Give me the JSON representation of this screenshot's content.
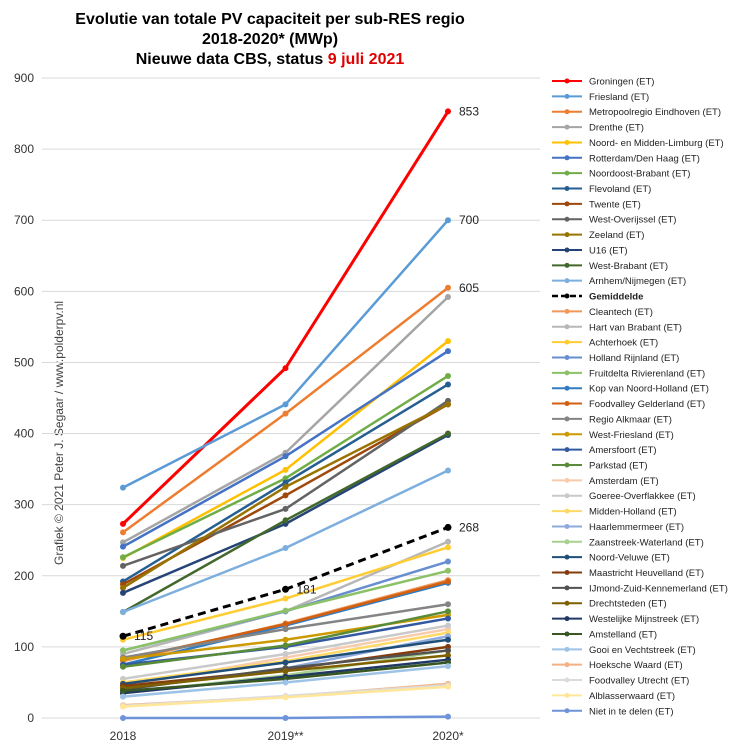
{
  "title": {
    "line1": "Evolutie  van totale PV capaciteit  per sub-RES regio",
    "line2": "2018-2020*  (MWp)",
    "line3_prefix": "Nieuwe data CBS, status ",
    "line3_highlight": "9 juli  2021",
    "highlight_color": "#e00000"
  },
  "credit": "Grafiek  ©  2021  Peter J.  Segaar  /  www.polderpv.nl",
  "chart_data": {
    "type": "line",
    "categories": [
      "2018",
      "2019**",
      "2020*"
    ],
    "ylim": [
      0,
      900
    ],
    "yticks": [
      0,
      100,
      200,
      300,
      400,
      500,
      600,
      700,
      800,
      900
    ],
    "grid": true,
    "legend_position": "right",
    "data_labels": [
      {
        "series": "Groningen (ET)",
        "index": 2,
        "text": "853"
      },
      {
        "series": "Friesland (ET)",
        "index": 2,
        "text": "700"
      },
      {
        "series": "Metropoolregio Eindhoven (ET)",
        "index": 2,
        "text": "605"
      },
      {
        "series": "Gemiddelde",
        "index": 0,
        "text": "115"
      },
      {
        "series": "Gemiddelde",
        "index": 1,
        "text": "181"
      },
      {
        "series": "Gemiddelde",
        "index": 2,
        "text": "268"
      }
    ],
    "series": [
      {
        "name": "Groningen (ET)",
        "values": [
          273,
          492,
          853
        ],
        "color": "#ff0000",
        "width": 3
      },
      {
        "name": "Friesland (ET)",
        "values": [
          324,
          441,
          700
        ],
        "color": "#5b9bd5",
        "width": 2.5
      },
      {
        "name": "Metropoolregio Eindhoven (ET)",
        "values": [
          261,
          428,
          605
        ],
        "color": "#ed7d31",
        "width": 2.5
      },
      {
        "name": "Drenthe (ET)",
        "values": [
          247,
          373,
          592
        ],
        "color": "#a5a5a5",
        "width": 2.5
      },
      {
        "name": "Noord- en Midden-Limburg (ET)",
        "values": [
          225,
          349,
          530
        ],
        "color": "#ffc000",
        "width": 2.5
      },
      {
        "name": "Rotterdam/Den Haag (ET)",
        "values": [
          241,
          368,
          516
        ],
        "color": "#4472c4",
        "width": 2.5
      },
      {
        "name": "Noordoost-Brabant (ET)",
        "values": [
          226,
          337,
          481
        ],
        "color": "#70ad47",
        "width": 2.5
      },
      {
        "name": "Flevoland (ET)",
        "values": [
          192,
          331,
          469
        ],
        "color": "#255e91",
        "width": 2.5
      },
      {
        "name": "Twente (ET)",
        "values": [
          188,
          313,
          441
        ],
        "color": "#9e480e",
        "width": 2.5
      },
      {
        "name": "West-Overijssel (ET)",
        "values": [
          214,
          294,
          446
        ],
        "color": "#636363",
        "width": 2.5
      },
      {
        "name": "Zeeland (ET)",
        "values": [
          183,
          325,
          441
        ],
        "color": "#997300",
        "width": 2.5
      },
      {
        "name": "U16 (ET)",
        "values": [
          176,
          273,
          398
        ],
        "color": "#264478",
        "width": 2.5
      },
      {
        "name": "West-Brabant (ET)",
        "values": [
          149,
          278,
          400
        ],
        "color": "#43682b",
        "width": 2.5
      },
      {
        "name": "Arnhem/Nijmegen (ET)",
        "values": [
          149,
          239,
          348
        ],
        "color": "#7cafdd",
        "width": 2.5
      },
      {
        "name": "Gemiddelde",
        "values": [
          115,
          181,
          268
        ],
        "color": "#000000",
        "width": 3,
        "dashed": true
      },
      {
        "name": "Cleantech (ET)",
        "values": [
          80,
          133,
          194
        ],
        "color": "#f1975a",
        "width": 2.5
      },
      {
        "name": "Hart van Brabant (ET)",
        "values": [
          90,
          150,
          248
        ],
        "color": "#b7b7b7",
        "width": 2.5
      },
      {
        "name": "Achterhoek (ET)",
        "values": [
          110,
          168,
          240
        ],
        "color": "#ffcd33",
        "width": 2.5
      },
      {
        "name": "Holland Rijnland (ET)",
        "values": [
          95,
          150,
          220
        ],
        "color": "#698ed0",
        "width": 2.5
      },
      {
        "name": "Fruitdelta Rivierenland (ET)",
        "values": [
          95,
          151,
          207
        ],
        "color": "#8cc168",
        "width": 2.5
      },
      {
        "name": "Kop van Noord-Holland (ET)",
        "values": [
          75,
          130,
          190
        ],
        "color": "#327dc2",
        "width": 2.5
      },
      {
        "name": "Foodvalley Gelderland (ET)",
        "values": [
          82,
          132,
          192
        ],
        "color": "#d26012",
        "width": 2.5
      },
      {
        "name": "Regio Alkmaar (ET)",
        "values": [
          85,
          125,
          160
        ],
        "color": "#848484",
        "width": 2.5
      },
      {
        "name": "West-Friesland (ET)",
        "values": [
          83,
          110,
          145
        ],
        "color": "#cc9a00",
        "width": 2.5
      },
      {
        "name": "Amersfoort (ET)",
        "values": [
          75,
          100,
          140
        ],
        "color": "#335aa1",
        "width": 2.5
      },
      {
        "name": "Parkstad (ET)",
        "values": [
          72,
          102,
          150
        ],
        "color": "#5a8b39",
        "width": 2.5
      },
      {
        "name": "Amsterdam (ET)",
        "values": [
          45,
          85,
          125
        ],
        "color": "#f8cbad",
        "width": 2.5
      },
      {
        "name": "Goeree-Overflakkee (ET)",
        "values": [
          55,
          90,
          130
        ],
        "color": "#c9c9c9",
        "width": 2.5
      },
      {
        "name": "Midden-Holland (ET)",
        "values": [
          50,
          80,
          120
        ],
        "color": "#ffd966",
        "width": 2.5
      },
      {
        "name": "Haarlemmermeer (ET)",
        "values": [
          40,
          70,
          115
        ],
        "color": "#8faadc",
        "width": 2.5
      },
      {
        "name": "Zaanstreek-Waterland (ET)",
        "values": [
          35,
          60,
          95
        ],
        "color": "#a9d18e",
        "width": 2.5
      },
      {
        "name": "Noord-Veluwe (ET)",
        "values": [
          48,
          78,
          110
        ],
        "color": "#1f4e79",
        "width": 2.5
      },
      {
        "name": "Maastricht Heuvelland (ET)",
        "values": [
          45,
          68,
          100
        ],
        "color": "#843c0c",
        "width": 2.5
      },
      {
        "name": "IJmond-Zuid-Kennemerland (ET)",
        "values": [
          40,
          70,
          95
        ],
        "color": "#525252",
        "width": 2.5
      },
      {
        "name": "Drechtsteden (ET)",
        "values": [
          42,
          66,
          88
        ],
        "color": "#7f6000",
        "width": 2.5
      },
      {
        "name": "Westelijke Mijnstreek (ET)",
        "values": [
          35,
          58,
          82
        ],
        "color": "#203864",
        "width": 2.5
      },
      {
        "name": "Amstelland (ET)",
        "values": [
          38,
          55,
          78
        ],
        "color": "#385723",
        "width": 2.5
      },
      {
        "name": "Gooi en Vechtstreek (ET)",
        "values": [
          30,
          50,
          73
        ],
        "color": "#9dc3e6",
        "width": 2.5
      },
      {
        "name": "Hoeksche Waard (ET)",
        "values": [
          18,
          30,
          48
        ],
        "color": "#f4b183",
        "width": 2.5
      },
      {
        "name": "Foodvalley Utrecht (ET)",
        "values": [
          17,
          31,
          46
        ],
        "color": "#dbdbdb",
        "width": 2.5
      },
      {
        "name": "Alblasserwaard (ET)",
        "values": [
          16,
          29,
          44
        ],
        "color": "#ffe699",
        "width": 2.5
      },
      {
        "name": "Niet in te delen (ET)",
        "values": [
          0,
          0,
          2
        ],
        "color": "#6f93d8",
        "width": 2.5
      }
    ]
  }
}
